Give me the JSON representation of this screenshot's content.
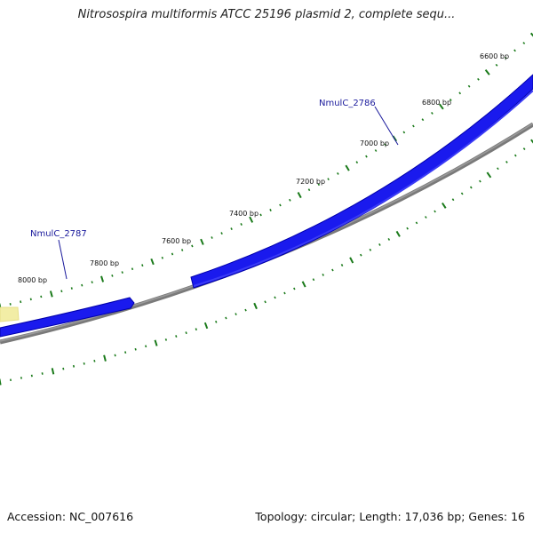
{
  "title": "Nitrosospira multiformis ATCC 25196 plasmid 2, complete sequ...",
  "footer": {
    "accession": "Accession: NC_007616",
    "summary": "Topology: circular; Length: 17,036 bp; Genes: 16"
  },
  "map": {
    "position_labels": [
      "6600 bp",
      "6800 bp",
      "7000 bp",
      "7200 bp",
      "7400 bp",
      "7600 bp",
      "7800 bp",
      "8000 bp"
    ],
    "genes": [
      {
        "label": "NmulC_2786",
        "color": "#0000ee"
      },
      {
        "label": "NmulC_2787",
        "color": "#0000ee"
      }
    ],
    "colors": {
      "gene": "#0000ee",
      "backbone": "#777777",
      "ticks": "#1a7a1a",
      "highlight": "#f2eda6"
    }
  }
}
